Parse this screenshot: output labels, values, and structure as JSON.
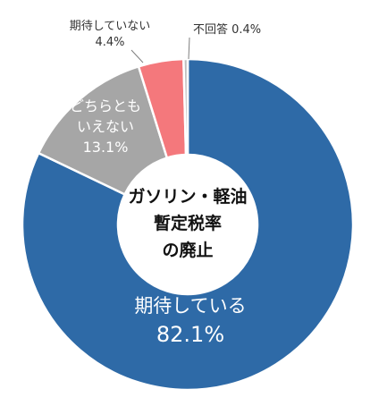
{
  "chart_data": {
    "type": "pie",
    "style": "donut",
    "center_label": [
      "ガソリン・軽油",
      "暫定税率",
      "の廃止"
    ],
    "slices": [
      {
        "label": "期待している",
        "value": 82.1,
        "value_text": "82.1%",
        "color": "#2e6aa7"
      },
      {
        "label": "どちらとも\nいえない",
        "value": 13.1,
        "value_text": "13.1%",
        "color": "#a6a6a6"
      },
      {
        "label": "期待していない",
        "value": 4.4,
        "value_text": "4.4%",
        "color": "#f4787c"
      },
      {
        "label": "不回答",
        "value": 0.4,
        "value_text": "0.4%",
        "color": "#bfbfbf"
      }
    ]
  }
}
